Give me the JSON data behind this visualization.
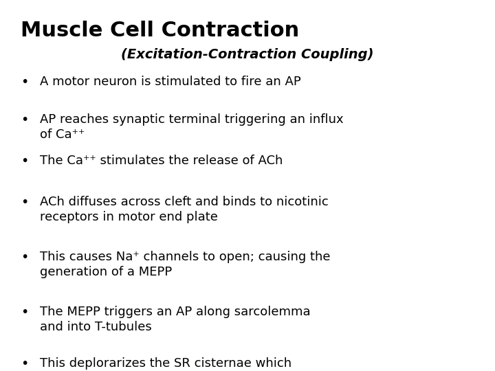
{
  "title": "Muscle Cell Contraction",
  "subtitle": "(Excitation-Contraction Coupling)",
  "bullet_points": [
    "A motor neuron is stimulated to fire an AP",
    "AP reaches synaptic terminal triggering an influx\nof Ca⁺⁺",
    "The Ca⁺⁺ stimulates the release of ACh",
    "ACh diffuses across cleft and binds to nicotinic\nreceptors in motor end plate",
    "This causes Na⁺ channels to open; causing the\ngeneration of a MEPP",
    "The MEPP triggers an AP along sarcolemma\nand into T-tubules",
    "This deplorarizes the SR cisternae which\nreleases stored Ca⁺⁺ into the cytoplasm"
  ],
  "background_color": "#ffffff",
  "title_color": "#000000",
  "subtitle_color": "#000000",
  "bullet_color": "#000000",
  "title_fontsize": 22,
  "subtitle_fontsize": 14,
  "bullet_fontsize": 13
}
